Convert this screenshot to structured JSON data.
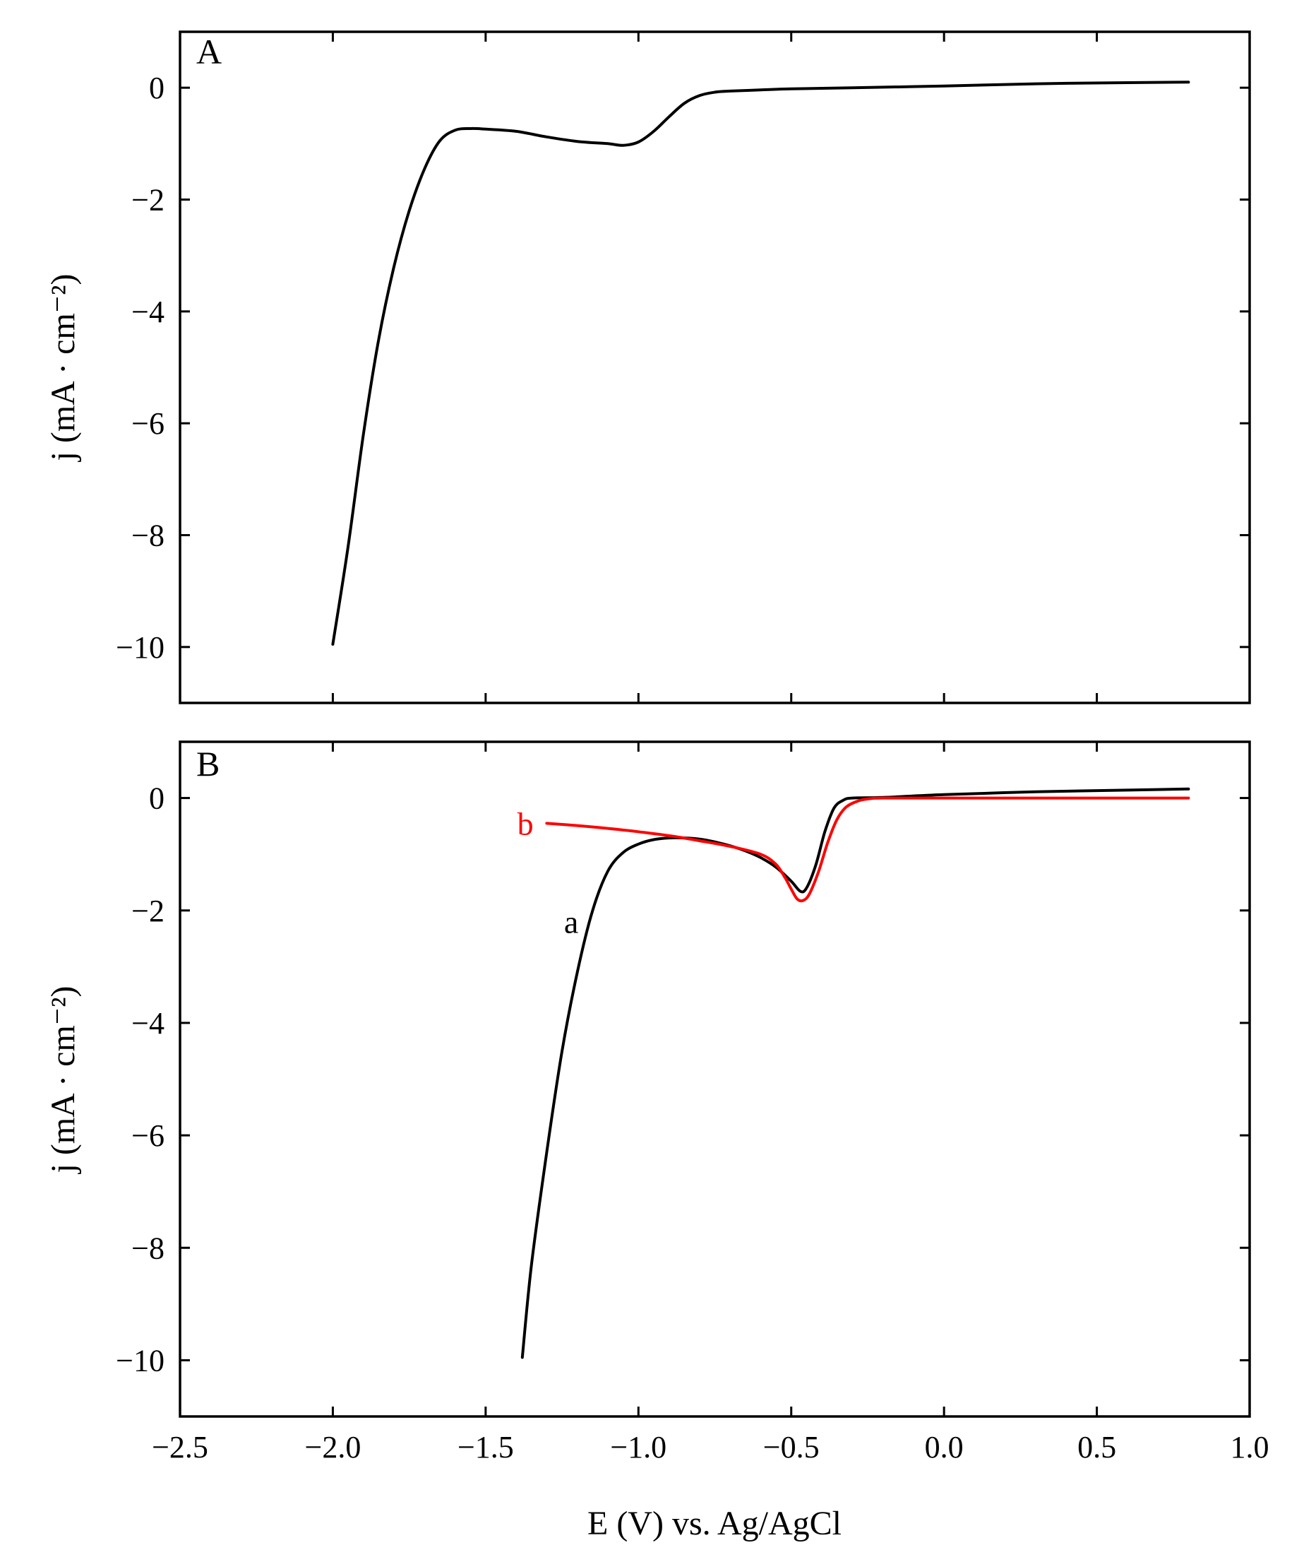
{
  "chart_data": [
    {
      "type": "line",
      "panel_label": "A",
      "xlabel": "",
      "ylabel": "j (mA · cm⁻²)",
      "xlim": [
        -2.5,
        1.0
      ],
      "ylim": [
        -11,
        1
      ],
      "xticks": [
        -2.5,
        -2.0,
        -1.5,
        -1.0,
        -0.5,
        0.0,
        0.5,
        1.0
      ],
      "xtick_labels": [
        "",
        "",
        "",
        "",
        "",
        "",
        "",
        ""
      ],
      "yticks": [
        0,
        -2,
        -4,
        -6,
        -8,
        -10
      ],
      "ytick_labels": [
        "0",
        "−2",
        "−4",
        "−6",
        "−8",
        "−10"
      ],
      "grid": false,
      "series": [
        {
          "label": "",
          "color": "#000000",
          "points": [
            [
              -2.0,
              -9.95
            ],
            [
              -1.95,
              -8.2
            ],
            [
              -1.9,
              -6.2
            ],
            [
              -1.85,
              -4.5
            ],
            [
              -1.8,
              -3.2
            ],
            [
              -1.75,
              -2.2
            ],
            [
              -1.7,
              -1.45
            ],
            [
              -1.65,
              -0.95
            ],
            [
              -1.6,
              -0.76
            ],
            [
              -1.55,
              -0.73
            ],
            [
              -1.5,
              -0.74
            ],
            [
              -1.4,
              -0.78
            ],
            [
              -1.3,
              -0.88
            ],
            [
              -1.2,
              -0.96
            ],
            [
              -1.1,
              -1.0
            ],
            [
              -1.05,
              -1.03
            ],
            [
              -1.0,
              -0.97
            ],
            [
              -0.95,
              -0.78
            ],
            [
              -0.9,
              -0.52
            ],
            [
              -0.85,
              -0.28
            ],
            [
              -0.8,
              -0.14
            ],
            [
              -0.75,
              -0.08
            ],
            [
              -0.7,
              -0.06
            ],
            [
              -0.6,
              -0.04
            ],
            [
              -0.5,
              -0.02
            ],
            [
              -0.3,
              0.0
            ],
            [
              0.0,
              0.03
            ],
            [
              0.3,
              0.07
            ],
            [
              0.6,
              0.09
            ],
            [
              0.8,
              0.1
            ]
          ]
        }
      ],
      "annotations": []
    },
    {
      "type": "line",
      "panel_label": "B",
      "xlabel": "E (V) vs. Ag/AgCl",
      "ylabel": "j (mA · cm⁻²)",
      "xlim": [
        -2.5,
        1.0
      ],
      "ylim": [
        -11,
        1
      ],
      "xticks": [
        -2.5,
        -2.0,
        -1.5,
        -1.0,
        -0.5,
        0.0,
        0.5,
        1.0
      ],
      "xtick_labels": [
        "−2.5",
        "−2.0",
        "−1.5",
        "−1.0",
        "−0.5",
        "0.0",
        "0.5",
        "1.0"
      ],
      "yticks": [
        0,
        -2,
        -4,
        -6,
        -8,
        -10
      ],
      "ytick_labels": [
        "0",
        "−2",
        "−4",
        "−6",
        "−8",
        "−10"
      ],
      "grid": false,
      "series": [
        {
          "label": "a",
          "color": "#000000",
          "points": [
            [
              -1.38,
              -9.95
            ],
            [
              -1.35,
              -8.3
            ],
            [
              -1.3,
              -6.3
            ],
            [
              -1.25,
              -4.5
            ],
            [
              -1.2,
              -3.1
            ],
            [
              -1.15,
              -2.0
            ],
            [
              -1.1,
              -1.3
            ],
            [
              -1.05,
              -0.97
            ],
            [
              -1.0,
              -0.82
            ],
            [
              -0.95,
              -0.74
            ],
            [
              -0.9,
              -0.71
            ],
            [
              -0.85,
              -0.71
            ],
            [
              -0.8,
              -0.73
            ],
            [
              -0.75,
              -0.78
            ],
            [
              -0.7,
              -0.85
            ],
            [
              -0.65,
              -0.94
            ],
            [
              -0.6,
              -1.06
            ],
            [
              -0.55,
              -1.23
            ],
            [
              -0.5,
              -1.48
            ],
            [
              -0.47,
              -1.66
            ],
            [
              -0.45,
              -1.6
            ],
            [
              -0.42,
              -1.2
            ],
            [
              -0.39,
              -0.6
            ],
            [
              -0.36,
              -0.18
            ],
            [
              -0.33,
              -0.04
            ],
            [
              -0.3,
              0.0
            ],
            [
              -0.2,
              0.01
            ],
            [
              0.0,
              0.06
            ],
            [
              0.3,
              0.11
            ],
            [
              0.6,
              0.14
            ],
            [
              0.8,
              0.16
            ]
          ]
        },
        {
          "label": "b",
          "color": "#ff0000",
          "points": [
            [
              -1.3,
              -0.45
            ],
            [
              -1.2,
              -0.49
            ],
            [
              -1.1,
              -0.54
            ],
            [
              -1.0,
              -0.6
            ],
            [
              -0.9,
              -0.67
            ],
            [
              -0.8,
              -0.76
            ],
            [
              -0.7,
              -0.86
            ],
            [
              -0.6,
              -1.0
            ],
            [
              -0.55,
              -1.18
            ],
            [
              -0.52,
              -1.42
            ],
            [
              -0.5,
              -1.62
            ],
            [
              -0.48,
              -1.8
            ],
            [
              -0.46,
              -1.82
            ],
            [
              -0.44,
              -1.7
            ],
            [
              -0.41,
              -1.3
            ],
            [
              -0.38,
              -0.78
            ],
            [
              -0.35,
              -0.38
            ],
            [
              -0.32,
              -0.16
            ],
            [
              -0.28,
              -0.05
            ],
            [
              -0.24,
              -0.01
            ],
            [
              -0.2,
              0.0
            ],
            [
              0.0,
              0.0
            ],
            [
              0.4,
              0.0
            ],
            [
              0.8,
              0.0
            ]
          ]
        }
      ],
      "annotations": [
        {
          "text": "a",
          "x": -1.22,
          "y": -2.2,
          "color": "#000000"
        },
        {
          "text": "b",
          "x": -1.37,
          "y": -0.45,
          "color": "#ff0000"
        }
      ]
    }
  ]
}
